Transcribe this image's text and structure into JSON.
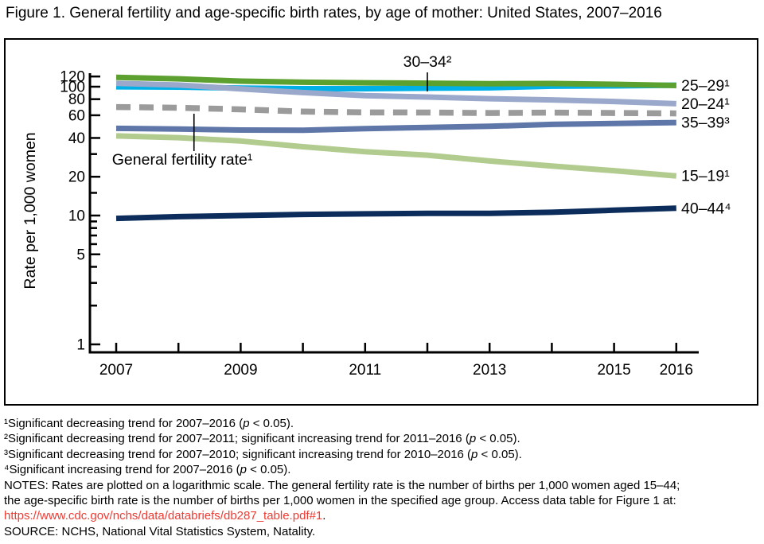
{
  "title": "Figure 1. General fertility and age-specific birth rates, by age of mother: United States, 2007–2016",
  "chart_data": {
    "type": "line",
    "log_scale": true,
    "title": "",
    "xlabel": "",
    "ylabel": "Rate per 1,000 women",
    "x": [
      2007,
      2008,
      2009,
      2010,
      2011,
      2012,
      2013,
      2014,
      2015,
      2016
    ],
    "x_labeled_ticks": [
      2007,
      2009,
      2011,
      2013,
      2015,
      2016
    ],
    "y_major_ticks": [
      1,
      5,
      10,
      20,
      40,
      60,
      80,
      100,
      120
    ],
    "y_minor_ticks": [
      2,
      3,
      4,
      6,
      7,
      8,
      9,
      15,
      30
    ],
    "ylim": [
      1,
      130
    ],
    "legend_position": "right-end-labels",
    "grid": false,
    "series": [
      {
        "id": "30-34",
        "label": "30–34²",
        "label_position": "annotation",
        "color": "#00b0e6",
        "dashed": false,
        "values": [
          99.9,
          99.3,
          97.5,
          96.5,
          96.5,
          97.3,
          98.0,
          100.8,
          101.5,
          102.7
        ]
      },
      {
        "id": "20-24",
        "label": "20–24¹",
        "label_position": "right",
        "color": "#9aa8cc",
        "dashed": false,
        "values": [
          106.3,
          103.0,
          96.2,
          90.0,
          85.3,
          83.1,
          80.7,
          79.0,
          76.8,
          73.8
        ]
      },
      {
        "id": "25-29",
        "label": "25–29¹",
        "label_position": "right",
        "color": "#5ca02f",
        "dashed": false,
        "values": [
          118.1,
          115.1,
          110.5,
          108.3,
          107.2,
          106.5,
          105.5,
          105.8,
          104.3,
          102.1
        ]
      },
      {
        "id": "gfr",
        "label": "General fertility rate¹",
        "label_position": "annotation",
        "color": "#9b9b9b",
        "dashed": true,
        "values": [
          69.5,
          68.6,
          66.7,
          64.1,
          63.2,
          63.0,
          62.5,
          62.9,
          62.5,
          62.0
        ]
      },
      {
        "id": "35-39",
        "label": "35–39³",
        "label_position": "right",
        "color": "#5e76a8",
        "dashed": false,
        "values": [
          47.5,
          46.9,
          46.1,
          45.9,
          47.2,
          48.3,
          49.3,
          51.0,
          51.8,
          52.7
        ]
      },
      {
        "id": "15-19",
        "label": "15–19¹",
        "label_position": "right",
        "color": "#b2cb8e",
        "dashed": false,
        "values": [
          41.5,
          40.2,
          37.9,
          34.2,
          31.3,
          29.4,
          26.5,
          24.2,
          22.3,
          20.3
        ]
      },
      {
        "id": "40-44",
        "label": "40–44⁴",
        "label_position": "right",
        "color": "#0c2d5b",
        "dashed": false,
        "values": [
          9.5,
          9.8,
          10.0,
          10.2,
          10.3,
          10.4,
          10.4,
          10.6,
          11.0,
          11.4
        ]
      }
    ],
    "annotations": [
      {
        "text": "30–34²",
        "target_series": "30-34",
        "year": 2012,
        "placement": "above"
      },
      {
        "text": "General fertility rate¹",
        "target_series": "gfr",
        "year": 2008.25,
        "placement": "below"
      }
    ]
  },
  "footnotes_section": {
    "footnotes": [
      {
        "segments": [
          {
            "t": "¹Significant decreasing trend for 2007–2016 (",
            "i": false
          },
          {
            "t": "p",
            "i": true
          },
          {
            "t": " < 0.05).",
            "i": false
          }
        ]
      },
      {
        "segments": [
          {
            "t": "²Significant decreasing trend for 2007–2011; significant increasing trend for 2011–2016 (",
            "i": false
          },
          {
            "t": "p",
            "i": true
          },
          {
            "t": " < 0.05).",
            "i": false
          }
        ]
      },
      {
        "segments": [
          {
            "t": "³Significant decreasing trend for 2007–2010; significant increasing trend for 2010–2016 (",
            "i": false
          },
          {
            "t": "p",
            "i": true
          },
          {
            "t": " < 0.05).",
            "i": false
          }
        ]
      },
      {
        "segments": [
          {
            "t": "⁴Significant increasing trend for 2007–2016 (",
            "i": false
          },
          {
            "t": "p",
            "i": true
          },
          {
            "t": " < 0.05).",
            "i": false
          }
        ]
      }
    ],
    "notes_lines": [
      "NOTES: Rates are plotted on a logarithmic scale. The general fertility rate is the number of births per 1,000 women aged 15–44;",
      "the age-specific birth rate is the number of births per 1,000 women in the specified age group. Access data table for Figure 1 at:"
    ],
    "link_text": "https://www.cdc.gov/nchs/data/databriefs/db287_table.pdf#1",
    "link_suffix": ".",
    "source": "SOURCE: NCHS, National Vital Statistics System, Natality.",
    "link_color": "#ee3b33"
  },
  "colors": {
    "axis": "#000000",
    "text": "#000000",
    "link": "#ee3b33"
  }
}
